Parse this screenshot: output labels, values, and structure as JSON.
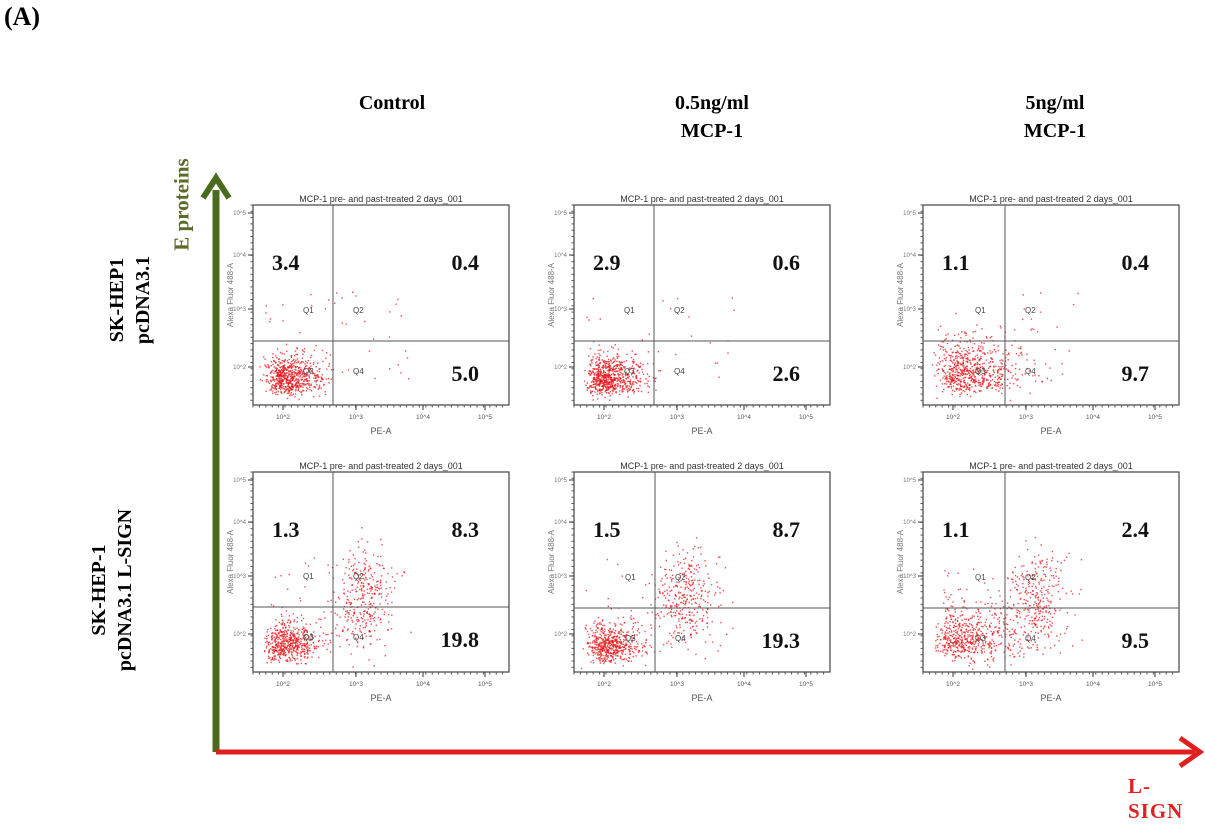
{
  "panel_label": "(A)",
  "columns": [
    {
      "line1": "Control",
      "line2": ""
    },
    {
      "line1": "0.5ng/ml",
      "line2": "MCP-1"
    },
    {
      "line1": "5ng/ml",
      "line2": "MCP-1"
    }
  ],
  "rows": [
    {
      "line1": "SK-HEP1",
      "line2": "pcDNA3.1"
    },
    {
      "line1": "SK-HEP-1",
      "line2": "pcDNA3.1 L-SIGN"
    }
  ],
  "y_axis_arrow": {
    "label": "E proteins",
    "color": "#4a6b1e"
  },
  "x_axis_arrow": {
    "label": "L-SIGN",
    "color": "#e02020"
  },
  "chart_data": {
    "type": "scatter",
    "plot_title": "MCP-1 pre- and past-treated 2 days_001",
    "xlabel": "PE-A",
    "ylabel": "Alexa Fluor 488-A",
    "x_ticks": [
      "10^2",
      "10^3",
      "10^4",
      "10^5"
    ],
    "y_ticks": [
      "10^2",
      "10^3",
      "10^4",
      "10^5"
    ],
    "quadrant_labels": [
      "Q1",
      "Q2",
      "Q3",
      "Q4"
    ],
    "point_color": "#e8141a",
    "panels": [
      {
        "row": 0,
        "col": 0,
        "Q1": 3.4,
        "Q2": 0.4,
        "Q4": 5.0
      },
      {
        "row": 0,
        "col": 1,
        "Q1": 2.9,
        "Q2": 0.6,
        "Q4": 2.6
      },
      {
        "row": 0,
        "col": 2,
        "Q1": 1.1,
        "Q2": 0.4,
        "Q4": 9.7
      },
      {
        "row": 1,
        "col": 0,
        "Q1": 1.3,
        "Q2": 8.3,
        "Q4": 19.8
      },
      {
        "row": 1,
        "col": 1,
        "Q1": 1.5,
        "Q2": 8.7,
        "Q4": 19.3
      },
      {
        "row": 1,
        "col": 2,
        "Q1": 1.1,
        "Q2": 2.4,
        "Q4": 9.5
      }
    ]
  }
}
